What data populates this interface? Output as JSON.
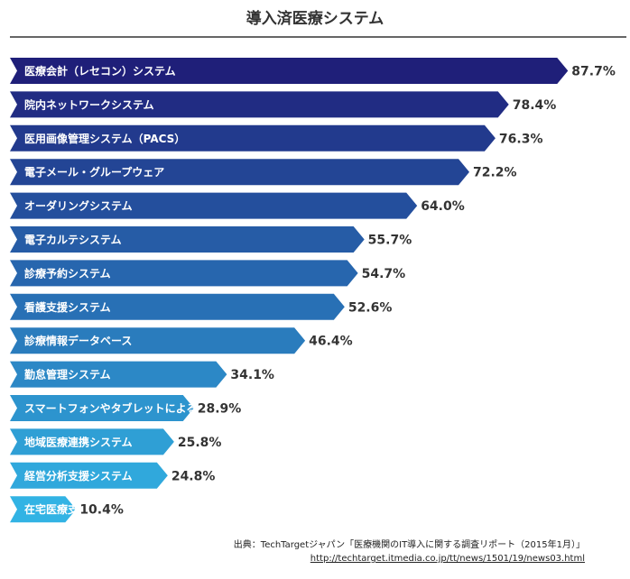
{
  "chart_data": {
    "type": "bar",
    "orientation": "horizontal",
    "title": "導入済医療システム",
    "unit": "%",
    "categories": [
      "医療会計（レセコン）システム",
      "院内ネットワークシステム",
      "医用画像管理システム（PACS）",
      "電子メール・グループウェア",
      "オーダリングシステム",
      "電子カルテシステム",
      "診療予約システム",
      "看護支援システム",
      "診療情報データベース",
      "勤怠管理システム",
      "スマートフォンやタブレットによるシステム利用",
      "地域医療連携システム",
      "経営分析支援システム",
      "在宅医療支援システム"
    ],
    "values": [
      87.7,
      78.4,
      76.3,
      72.2,
      64.0,
      55.7,
      54.7,
      52.6,
      46.4,
      34.1,
      28.9,
      25.8,
      24.8,
      10.4
    ],
    "value_labels": [
      "87.7%",
      "78.4%",
      "76.3%",
      "72.2%",
      "64.0%",
      "55.7%",
      "54.7%",
      "52.6%",
      "46.4%",
      "34.1%",
      "28.9%",
      "25.8%",
      "24.8%",
      "10.4%"
    ],
    "colors": [
      "#1f1f79",
      "#212c83",
      "#223a8d",
      "#234595",
      "#244f9d",
      "#265ca6",
      "#2766ae",
      "#2870b5",
      "#2a7cbd",
      "#2c88c6",
      "#2d94ce",
      "#2f9fd5",
      "#30a8dc",
      "#32b3e4"
    ],
    "grid": false,
    "legend": "none"
  },
  "source": {
    "text": "出典：TechTargetジャパン「医療機関のIT導入に関する調査リポート（2015年1月）」",
    "url": "http://techtarget.itmedia.co.jp/tt/news/1501/19/news03.html"
  }
}
